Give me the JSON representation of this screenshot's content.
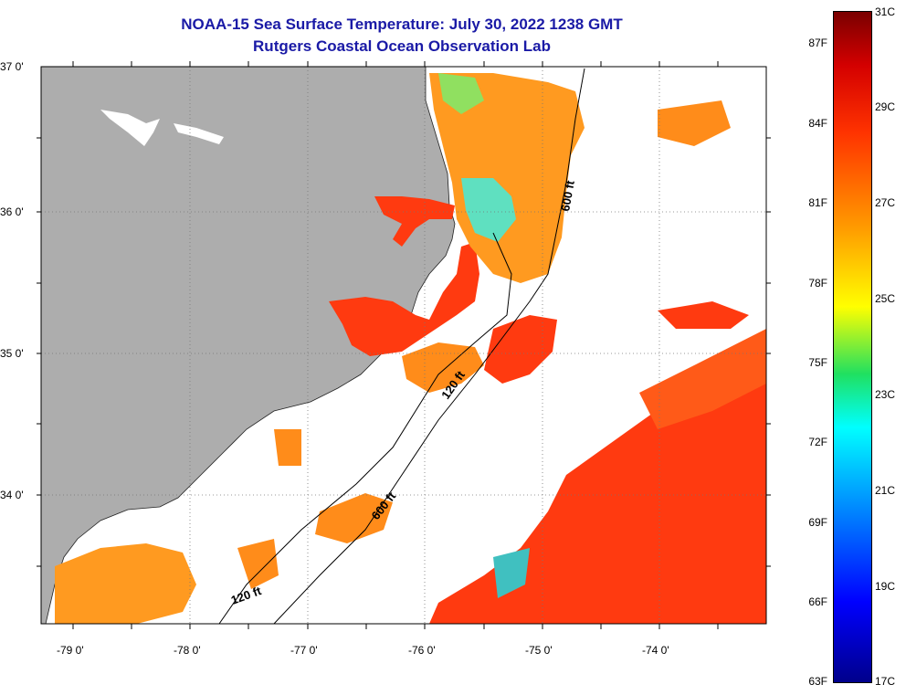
{
  "title": {
    "line1": "NOAA-15 Sea Surface Temperature:  July 30, 2022 1238 GMT",
    "line2": "Rutgers Coastal Ocean Observation Lab"
  },
  "map": {
    "lat_labels": [
      "37 0'",
      "36 0'",
      "35 0'",
      "34 0'"
    ],
    "lon_labels": [
      "-79 0'",
      "-78 0'",
      "-77 0'",
      "-76 0'",
      "-75 0'",
      "-74 0'"
    ],
    "isobath_labels": [
      "600 ft",
      "120 ft",
      "600 ft",
      "120 ft"
    ],
    "colors": {
      "land": "#adadad",
      "ocean_cloud": "#ffffff",
      "warm": "#ff3a10",
      "orange": "#ff8c1a",
      "cool": "#40e0d0"
    }
  },
  "colorbar": {
    "fahrenheit": [
      "87F",
      "84F",
      "81F",
      "78F",
      "75F",
      "72F",
      "69F",
      "66F",
      "63F"
    ],
    "celsius": [
      "31C",
      "29C",
      "27C",
      "25C",
      "23C",
      "21C",
      "19C",
      "17C"
    ]
  }
}
